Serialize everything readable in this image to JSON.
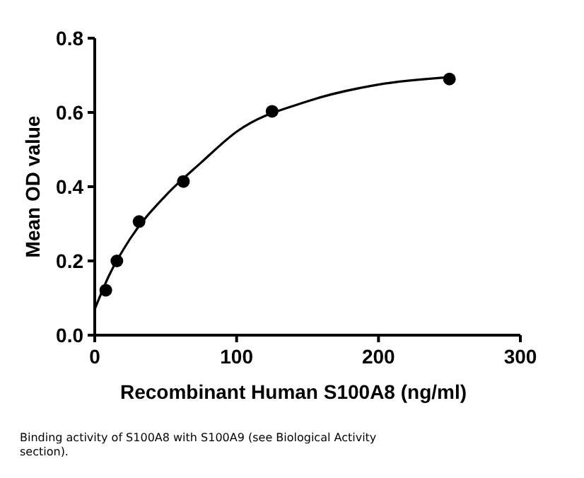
{
  "chart_data": {
    "type": "scatter",
    "xlabel": "Recombinant Human S100A8 (ng/ml)",
    "ylabel": "Mean OD value",
    "xlim": [
      0,
      300
    ],
    "xticks": [
      0,
      100,
      200,
      300
    ],
    "ylim": [
      0,
      0.8
    ],
    "yticks": [
      "0.0",
      0.2,
      0.4,
      0.6,
      0.8
    ],
    "series": [
      {
        "color": "#000000",
        "marker": "circle",
        "x": [
          7.8,
          15.6,
          31.25,
          62.5,
          125,
          250
        ],
        "values": [
          0.121,
          0.2,
          0.306,
          0.414,
          0.603,
          0.69
        ]
      },
      {
        "type": "line",
        "color": "#000000",
        "marker": "none",
        "line_style": "solid",
        "x": [
          0,
          10,
          25,
          50,
          75,
          100,
          150,
          200,
          250
        ],
        "values": [
          0.07,
          0.16,
          0.26,
          0.376,
          0.465,
          0.548,
          0.63,
          0.675,
          0.695
        ]
      }
    ],
    "grid": false,
    "annotations": [
      "Binding activity of S100A8 with S100A9 (see Biological Activity section)."
    ]
  }
}
